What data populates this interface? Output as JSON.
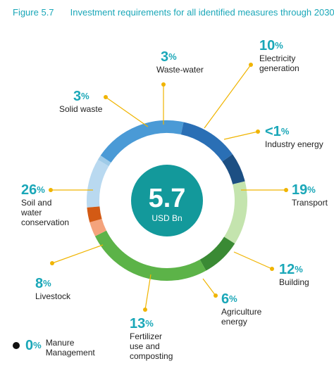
{
  "figure": {
    "number": "Figure 5.7",
    "title": "Investment requirements for all identified measures through 2030"
  },
  "center": {
    "value": "5.7",
    "unit": "USD Bn"
  },
  "colors": {
    "accent": "#1aa7b8",
    "center_fill": "#13999b",
    "leader": "#f0b400"
  },
  "chart_data": {
    "type": "pie",
    "style": "donut",
    "total": "5.7 USD Bn",
    "slices": [
      {
        "name": "Electricity generation",
        "label": "10%",
        "value": 10,
        "color": "#b9d9f0"
      },
      {
        "name": "Industry energy",
        "label": "<1%",
        "value": 1,
        "color": "#9fcbe8"
      },
      {
        "name": "Transport",
        "label": "19%",
        "value": 19,
        "color": "#4a9ad6"
      },
      {
        "name": "Building",
        "label": "12%",
        "value": 12,
        "color": "#2a6fb5"
      },
      {
        "name": "Agriculture energy",
        "label": "6%",
        "value": 6,
        "color": "#1c4f83"
      },
      {
        "name": "Fertilizer use and composting",
        "label": "13%",
        "value": 13,
        "color": "#c4e4ae"
      },
      {
        "name": "Manure Management",
        "label": "0%",
        "value": 0,
        "color": "#111111"
      },
      {
        "name": "Livestock",
        "label": "8%",
        "value": 8,
        "color": "#3a8a34"
      },
      {
        "name": "Soil and water conservation",
        "label": "26%",
        "value": 26,
        "color": "#5cb348"
      },
      {
        "name": "Solid waste",
        "label": "3%",
        "value": 3,
        "color": "#f4a37c"
      },
      {
        "name": "Waste-water",
        "label": "3%",
        "value": 3,
        "color": "#d35a14"
      }
    ]
  },
  "labels": {
    "electricity": {
      "pct": "10",
      "name": "Electricity\ngeneration"
    },
    "industry": {
      "pct": "<1",
      "name": "Industry energy"
    },
    "transport": {
      "pct": "19",
      "name": "Transport"
    },
    "building": {
      "pct": "12",
      "name": "Building"
    },
    "agriculture": {
      "pct": "6",
      "name": "Agriculture\nenergy"
    },
    "fertilizer": {
      "pct": "13",
      "name": "Fertilizer\nuse and\ncomposting"
    },
    "livestock": {
      "pct": "8",
      "name": "Livestock"
    },
    "soil": {
      "pct": "26",
      "name": "Soil and\nwater\nconservation"
    },
    "solidwaste": {
      "pct": "3",
      "name": "Solid waste"
    },
    "wastewater": {
      "pct": "3",
      "name": "Waste-water"
    },
    "manure": {
      "pct": "0",
      "name": "Manure\nManagement"
    },
    "percent_sign": "%"
  }
}
